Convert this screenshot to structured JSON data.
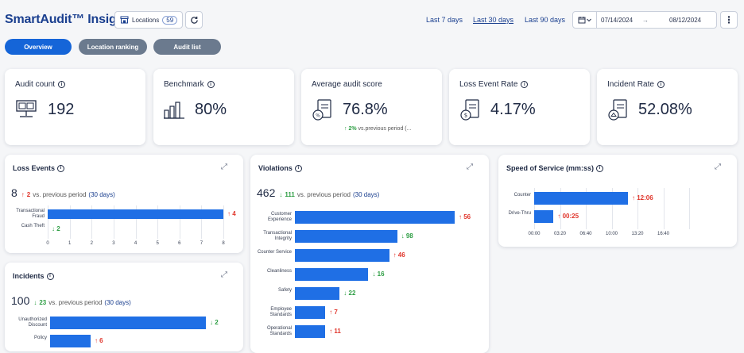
{
  "header": {
    "title": "SmartAudit™ Insight",
    "locations_label": "Locations",
    "locations_count": "59",
    "ranges": [
      "Last 7 days",
      "Last 30 days",
      "Last 90 days"
    ],
    "active_range": "Last 30 days",
    "date_from": "07/14/2024",
    "date_arrow": "→",
    "date_to": "08/12/2024",
    "more_label": "⋮"
  },
  "tabs": [
    {
      "label": "Overview",
      "active": true
    },
    {
      "label": "Location ranking",
      "active": false
    },
    {
      "label": "Audit list",
      "active": false
    }
  ],
  "kpis": {
    "audit_count": {
      "label": "Audit count",
      "value": "192"
    },
    "benchmark": {
      "label": "Benchmark",
      "value": "80%"
    },
    "avg_score": {
      "label": "Average audit score",
      "value": "76.8%",
      "trend_arrow": "↑",
      "trend_value": "2%",
      "trend_text": "vs.previous period (..."
    },
    "loss_rate": {
      "label": "Loss Event Rate",
      "value": "4.17%"
    },
    "incident_rate": {
      "label": "Incident Rate",
      "value": "52.08%"
    }
  },
  "loss_events": {
    "title": "Loss Events",
    "total": "8",
    "trend_arrow": "↑",
    "trend_value": "2",
    "trend_text": "vs. previous period",
    "period": "(30 days)",
    "max": 8,
    "ticks": [
      "0",
      "1",
      "2",
      "3",
      "4",
      "5",
      "6",
      "7",
      "8"
    ],
    "rows": [
      {
        "label": "Transactional Fraud",
        "value": 8,
        "delta_arrow": "↑",
        "delta": "4",
        "dir": "up"
      },
      {
        "label": "Cash Theft",
        "value": 0,
        "delta_arrow": "↓",
        "delta": "2",
        "dir": "down"
      }
    ]
  },
  "incidents": {
    "title": "Incidents",
    "total": "100",
    "trend_arrow": "↓",
    "trend_value": "23",
    "trend_text": "vs. previous period",
    "period": "(30 days)",
    "rows": [
      {
        "label": "Unauthorized Discount",
        "value": 100,
        "delta_arrow": "↓",
        "delta": "2",
        "dir": "down"
      },
      {
        "label": "Policy",
        "value": 26,
        "delta_arrow": "↑",
        "delta": "6",
        "dir": "up"
      }
    ]
  },
  "violations": {
    "title": "Violations",
    "total": "462",
    "trend_arrow": "↓",
    "trend_value": "111",
    "trend_text": "vs. previous period",
    "period": "(30 days)",
    "rows": [
      {
        "label": "Customer Experience",
        "value": 100,
        "delta_arrow": "↑",
        "delta": "56",
        "dir": "up"
      },
      {
        "label": "Transactional Integrity",
        "value": 64,
        "delta_arrow": "↓",
        "delta": "98",
        "dir": "down"
      },
      {
        "label": "Counter Service",
        "value": 59,
        "delta_arrow": "↑",
        "delta": "46",
        "dir": "up"
      },
      {
        "label": "Cleanliness",
        "value": 46,
        "delta_arrow": "↓",
        "delta": "16",
        "dir": "down"
      },
      {
        "label": "Safety",
        "value": 28,
        "delta_arrow": "↓",
        "delta": "22",
        "dir": "down"
      },
      {
        "label": "Employee Standards",
        "value": 19,
        "delta_arrow": "↑",
        "delta": "7",
        "dir": "up"
      },
      {
        "label": "Operational Standards",
        "value": 19,
        "delta_arrow": "↑",
        "delta": "11",
        "dir": "up"
      }
    ]
  },
  "speed_of_service": {
    "title": "Speed of Service (mm:ss)",
    "max_seconds": 1200,
    "ticks": [
      "00:00",
      "03:20",
      "06:40",
      "10:00",
      "13:20",
      "16:40"
    ],
    "rows": [
      {
        "label": "Counter",
        "seconds": 726,
        "delta_arrow": "↑",
        "delta": "12:06",
        "dir": "up"
      },
      {
        "label": "Drive-Thru",
        "seconds": 150,
        "delta_arrow": "↑",
        "delta": "00:25",
        "dir": "up"
      }
    ]
  },
  "colors": {
    "bar": "#1f6fe5",
    "up": "#e0352b",
    "down": "#2e9e44",
    "brand": "#1a3f8f"
  },
  "icons": {
    "info": "info-circle-icon",
    "expand": "expand-icon",
    "refresh": "refresh-icon",
    "calendar": "calendar-icon",
    "store": "store-icon"
  }
}
